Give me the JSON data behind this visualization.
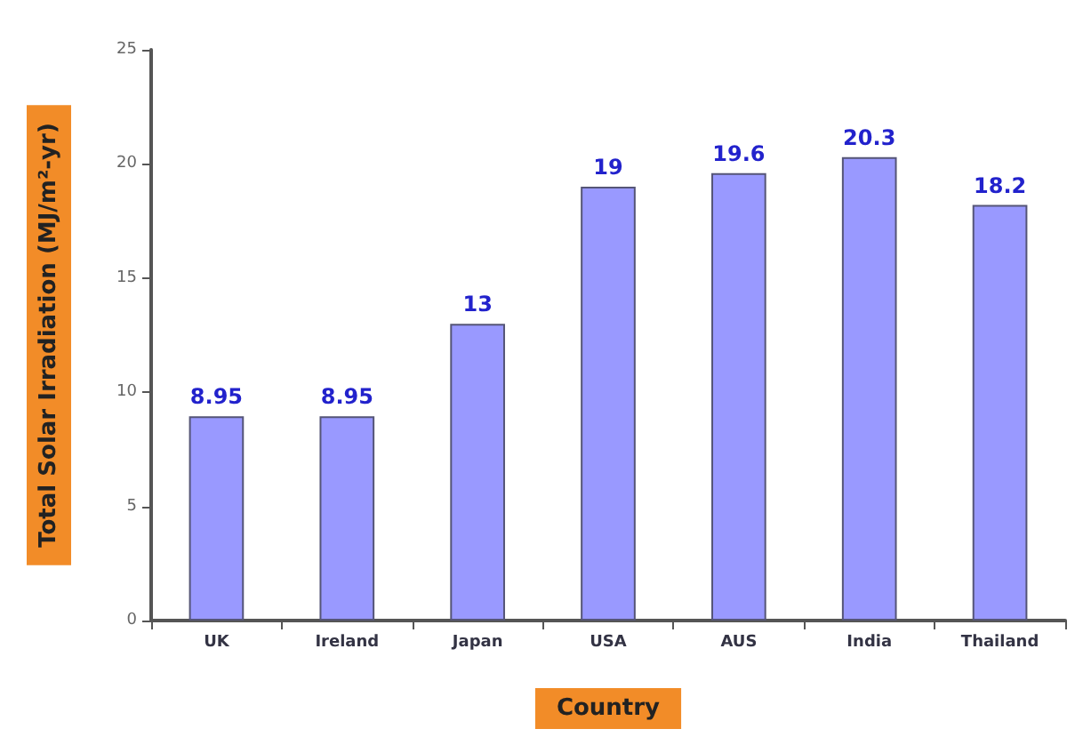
{
  "chart_data": {
    "type": "bar",
    "xlabel": "Country",
    "ylabel": "Total Solar Irradiation (MJ/m²-yr)",
    "categories": [
      "UK",
      "Ireland",
      "Japan",
      "USA",
      "AUS",
      "India",
      "Thailand"
    ],
    "values": [
      8.95,
      8.95,
      13,
      19,
      19.6,
      20.3,
      18.2
    ],
    "color": "#9999ff",
    "ylim": [
      0,
      25
    ],
    "yticks": [
      0,
      5,
      10,
      15,
      20,
      25
    ],
    "grid": false,
    "data_labels": true
  }
}
